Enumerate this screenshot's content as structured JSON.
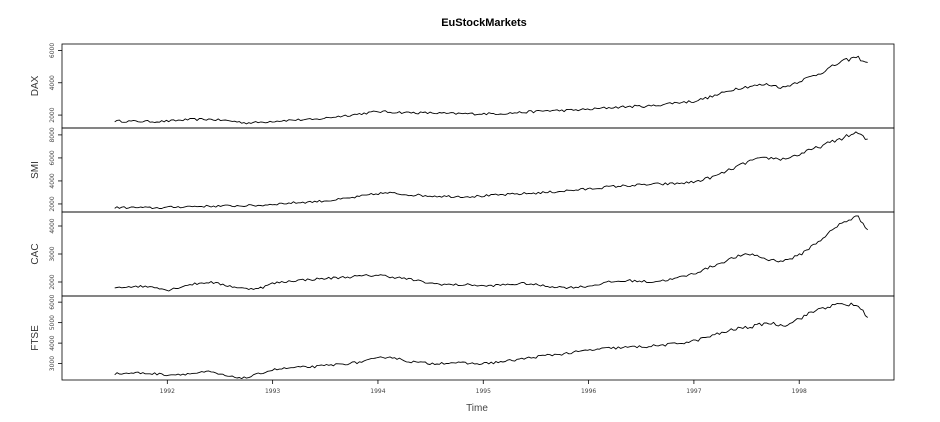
{
  "chart_data": {
    "type": "line",
    "title": "EuStockMarkets",
    "xlabel": "Time",
    "xlim": [
      1991.0,
      1998.9
    ],
    "x_ticks": [
      "1992",
      "1993",
      "1994",
      "1995",
      "1996",
      "1997",
      "1998"
    ],
    "x_tick_values": [
      1992,
      1993,
      1994,
      1995,
      1996,
      1997,
      1998
    ],
    "grid": false,
    "line_color": "#000000",
    "panels": [
      {
        "name": "DAX",
        "ylim": [
          1200,
          6400
        ],
        "y_ticks": [
          "2000",
          "4000",
          "6000"
        ],
        "y_tick_values": [
          2000,
          4000,
          6000
        ],
        "x": [
          1991.5,
          1991.7,
          1991.9,
          1992.0,
          1992.2,
          1992.4,
          1992.6,
          1992.75,
          1992.9,
          1993.0,
          1993.2,
          1993.4,
          1993.6,
          1993.8,
          1994.0,
          1994.1,
          1994.3,
          1994.5,
          1994.7,
          1994.9,
          1995.0,
          1995.2,
          1995.4,
          1995.6,
          1995.8,
          1996.0,
          1996.2,
          1996.4,
          1996.6,
          1996.8,
          1997.0,
          1997.2,
          1997.4,
          1997.55,
          1997.7,
          1997.85,
          1998.0,
          1998.2,
          1998.4,
          1998.55,
          1998.65
        ],
        "values": [
          1630,
          1610,
          1600,
          1620,
          1720,
          1740,
          1640,
          1510,
          1560,
          1620,
          1700,
          1720,
          1900,
          2050,
          2220,
          2190,
          2150,
          2130,
          2090,
          2080,
          2080,
          2100,
          2180,
          2270,
          2290,
          2350,
          2460,
          2530,
          2560,
          2750,
          2850,
          3200,
          3650,
          3800,
          3900,
          3700,
          4100,
          4600,
          5300,
          5600,
          5200
        ]
      },
      {
        "name": "SMI",
        "ylim": [
          1300,
          8600
        ],
        "y_ticks": [
          "2000",
          "4000",
          "6000",
          "8000"
        ],
        "y_tick_values": [
          2000,
          4000,
          6000,
          8000
        ],
        "x": [
          1991.5,
          1991.7,
          1991.9,
          1992.0,
          1992.2,
          1992.4,
          1992.6,
          1992.75,
          1992.9,
          1993.0,
          1993.2,
          1993.4,
          1993.6,
          1993.8,
          1994.0,
          1994.1,
          1994.3,
          1994.5,
          1994.7,
          1994.9,
          1995.0,
          1995.2,
          1995.4,
          1995.6,
          1995.8,
          1996.0,
          1996.2,
          1996.4,
          1996.6,
          1996.8,
          1997.0,
          1997.2,
          1997.4,
          1997.55,
          1997.7,
          1997.85,
          1998.0,
          1998.2,
          1998.4,
          1998.55,
          1998.65
        ],
        "values": [
          1680,
          1690,
          1650,
          1700,
          1780,
          1800,
          1830,
          1850,
          1880,
          1980,
          2100,
          2200,
          2350,
          2600,
          2900,
          2950,
          2800,
          2700,
          2650,
          2650,
          2700,
          2800,
          2900,
          3000,
          3150,
          3300,
          3500,
          3600,
          3700,
          3750,
          3900,
          4400,
          5200,
          5800,
          6000,
          5900,
          6300,
          7000,
          7700,
          8200,
          7500
        ]
      },
      {
        "name": "CAC",
        "ylim": [
          1500,
          4500
        ],
        "y_ticks": [
          "2000",
          "3000",
          "4000"
        ],
        "y_tick_values": [
          2000,
          3000,
          4000
        ],
        "x": [
          1991.5,
          1991.7,
          1991.9,
          1992.0,
          1992.2,
          1992.4,
          1992.6,
          1992.75,
          1992.9,
          1993.0,
          1993.2,
          1993.4,
          1993.6,
          1993.8,
          1994.0,
          1994.1,
          1994.3,
          1994.5,
          1994.7,
          1994.9,
          1995.0,
          1995.2,
          1995.4,
          1995.6,
          1995.8,
          1996.0,
          1996.2,
          1996.4,
          1996.6,
          1996.8,
          1997.0,
          1997.2,
          1997.4,
          1997.55,
          1997.7,
          1997.85,
          1998.0,
          1998.2,
          1998.4,
          1998.55,
          1998.65
        ],
        "values": [
          1800,
          1850,
          1820,
          1700,
          1900,
          2000,
          1850,
          1750,
          1800,
          1950,
          2050,
          2100,
          2150,
          2200,
          2250,
          2200,
          2100,
          1950,
          1900,
          1900,
          1850,
          1900,
          1950,
          1850,
          1800,
          1850,
          2000,
          2050,
          2000,
          2100,
          2300,
          2600,
          2900,
          3000,
          2800,
          2750,
          2950,
          3500,
          4100,
          4350,
          3900
        ]
      },
      {
        "name": "FTSE",
        "ylim": [
          2200,
          6300
        ],
        "y_ticks": [
          "3000",
          "4000",
          "5000",
          "6000"
        ],
        "y_tick_values": [
          3000,
          4000,
          5000,
          6000
        ],
        "x": [
          1991.5,
          1991.7,
          1991.9,
          1992.0,
          1992.2,
          1992.4,
          1992.6,
          1992.75,
          1992.9,
          1993.0,
          1993.2,
          1993.4,
          1993.6,
          1993.8,
          1994.0,
          1994.1,
          1994.3,
          1994.5,
          1994.7,
          1994.9,
          1995.0,
          1995.2,
          1995.4,
          1995.6,
          1995.8,
          1996.0,
          1996.2,
          1996.4,
          1996.6,
          1996.8,
          1997.0,
          1997.2,
          1997.4,
          1997.55,
          1997.7,
          1997.85,
          1998.0,
          1998.2,
          1998.4,
          1998.55,
          1998.65
        ],
        "values": [
          2500,
          2550,
          2500,
          2450,
          2500,
          2600,
          2350,
          2300,
          2550,
          2700,
          2800,
          2850,
          2950,
          3050,
          3250,
          3350,
          3100,
          3000,
          3050,
          3000,
          3000,
          3100,
          3250,
          3400,
          3500,
          3650,
          3750,
          3800,
          3850,
          3950,
          4100,
          4400,
          4700,
          4800,
          5000,
          4850,
          5200,
          5700,
          5900,
          5850,
          5300
        ]
      }
    ]
  }
}
